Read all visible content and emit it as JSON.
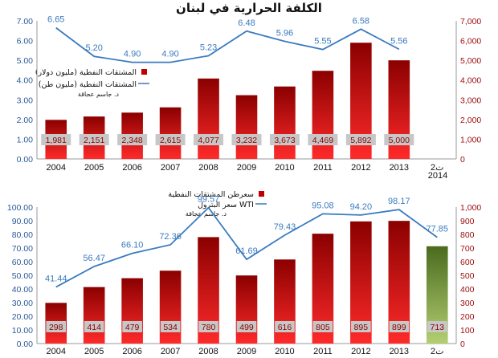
{
  "colors": {
    "bar_dark": "#8b0000",
    "bar_light": "#ff1a1a",
    "bar_green_dark": "#4a6b1e",
    "bar_green_light": "#a9c46a",
    "line": "#3b7bbf",
    "left_axis": "#2c5a99",
    "right_axis": "#a01010",
    "label_box": "#c7c7c7"
  },
  "chart_data": [
    {
      "type": "bar",
      "title": "الكلفة الحرارية في لبنان",
      "categories": [
        "2004",
        "2005",
        "2006",
        "2007",
        "2008",
        "2009",
        "2010",
        "2011",
        "2012",
        "2013",
        "ت2 2014"
      ],
      "series": [
        {
          "name": "المشتقات النفطية (مليون دولار)",
          "type": "bar",
          "axis": "right",
          "values": [
            1981,
            2151,
            2348,
            2615,
            4077,
            3232,
            3673,
            4469,
            5892,
            5000,
            null
          ],
          "labels": [
            "1,981",
            "2,151",
            "2,348",
            "2,615",
            "4,077",
            "3,232",
            "3,673",
            "4,469",
            "5,892",
            "5,000",
            null
          ]
        },
        {
          "name": "المشتقات النفطية (مليون طن)",
          "type": "line",
          "axis": "left",
          "values": [
            6.65,
            5.2,
            4.9,
            4.9,
            5.23,
            6.48,
            5.96,
            5.55,
            6.58,
            5.56,
            null
          ],
          "labels": [
            "6.65",
            "5.20",
            "4.90",
            "4.90",
            "5.23",
            "6.48",
            "5.96",
            "5.55",
            "6.58",
            "5.56",
            null
          ]
        }
      ],
      "left_axis": {
        "ylim": [
          0,
          7
        ],
        "ticks": [
          "0.00",
          "1.00",
          "2.00",
          "3.00",
          "4.00",
          "5.00",
          "6.00",
          "7.00"
        ]
      },
      "right_axis": {
        "ylim": [
          0,
          7000
        ],
        "ticks": [
          "0",
          "1,000",
          "2,000",
          "3,000",
          "4,000",
          "5,000",
          "6,000",
          "7,000"
        ]
      },
      "author": "د. جاسم عجاقة",
      "legend": "left",
      "grid": false
    },
    {
      "type": "bar",
      "categories": [
        "2004",
        "2005",
        "2006",
        "2007",
        "2008",
        "2009",
        "2010",
        "2011",
        "2012",
        "2013",
        "ت2"
      ],
      "series": [
        {
          "name": "سعرطن المشتقات النفطية",
          "type": "bar",
          "axis": "right",
          "values": [
            298,
            414,
            479,
            534,
            780,
            499,
            616,
            805,
            895,
            899,
            713
          ],
          "labels": [
            "298",
            "414",
            "479",
            "534",
            "780",
            "499",
            "616",
            "805",
            "895",
            "899",
            "713"
          ],
          "highlight_last": true
        },
        {
          "name": "سعر البترول WTI",
          "type": "line",
          "axis": "left",
          "values": [
            41.44,
            56.47,
            66.1,
            72.36,
            99.57,
            61.69,
            79.43,
            95.08,
            94.2,
            98.17,
            77.85
          ],
          "labels": [
            "41.44",
            "56.47",
            "66.10",
            "72.36",
            "99.57",
            "61.69",
            "79.43",
            "95.08",
            "94.20",
            "98.17",
            "77.85"
          ]
        }
      ],
      "left_axis": {
        "ylim": [
          0,
          100
        ],
        "ticks": [
          "0.00",
          "10.00",
          "20.00",
          "30.00",
          "40.00",
          "50.00",
          "60.00",
          "70.00",
          "80.00",
          "90.00",
          "100.00"
        ]
      },
      "right_axis": {
        "ylim": [
          0,
          1000
        ],
        "ticks": [
          "0",
          "100",
          "200",
          "300",
          "400",
          "500",
          "600",
          "700",
          "800",
          "900",
          "1,000"
        ]
      },
      "author": "د. جاسم عجاقة",
      "legend": "top",
      "grid": false
    }
  ]
}
